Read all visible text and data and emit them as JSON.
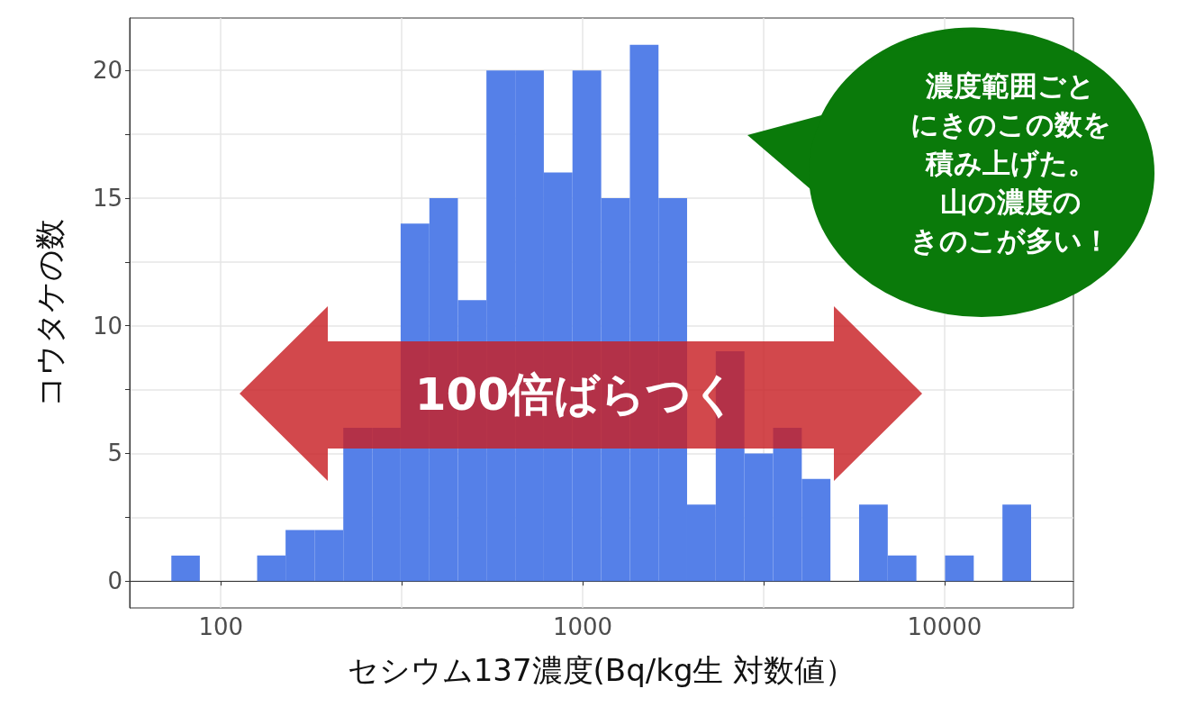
{
  "chart_data": {
    "type": "histogram",
    "xlabel": "セシウム137濃度(Bq/kg生 対数値）",
    "ylabel": "コウタケの数",
    "bins": [
      73,
      87.5,
      126,
      151,
      182,
      218,
      262,
      314,
      377,
      452,
      542,
      651,
      781,
      937,
      1125,
      1350,
      1620,
      1943,
      2332,
      2799,
      3359,
      4031,
      4837,
      5804,
      6966,
      8359,
      10030,
      12040,
      14450,
      17340
    ],
    "values": [
      1,
      0,
      1,
      2,
      2,
      6,
      6,
      14,
      15,
      11,
      20,
      20,
      16,
      20,
      15,
      21,
      15,
      3,
      9,
      5,
      6,
      4,
      0,
      3,
      1,
      0,
      1,
      0,
      3
    ],
    "color": "#5580e8",
    "log": "x",
    "xlim": [
      56,
      22700
    ],
    "xticks": [
      100,
      1000,
      10000,
      {
        "value": 316.2,
        "label": null
      },
      {
        "value": 3162,
        "label": null
      }
    ],
    "ylim": [
      -1.05,
      22.05
    ],
    "yticks": [
      0,
      5,
      10,
      15,
      20,
      {
        "value": 2.5,
        "label": null
      },
      {
        "value": 7.5,
        "label": null
      },
      {
        "value": 12.5,
        "label": null
      },
      {
        "value": 17.5,
        "label": null
      }
    ],
    "grid": true,
    "annotations": [
      "100倍ばらつく",
      "濃度範囲ごと",
      "にきのこの数を",
      "積み上げた。",
      "山の濃度の",
      "きのこが多い！"
    ]
  }
}
